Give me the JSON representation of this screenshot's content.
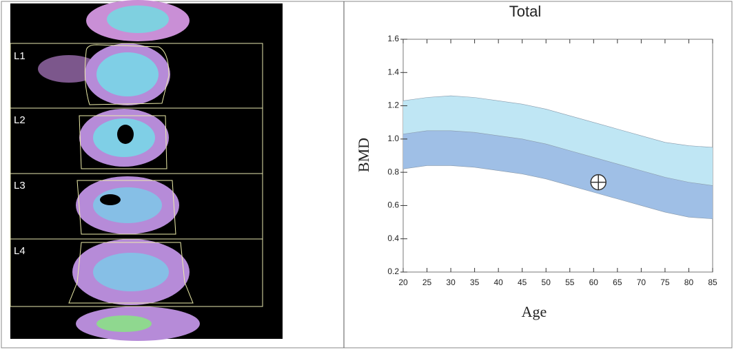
{
  "scan": {
    "labels": [
      "L1",
      "L2",
      "L3",
      "L4"
    ]
  },
  "chart_data": {
    "type": "band",
    "title": "Total",
    "xlabel": "Age",
    "ylabel": "BMD",
    "x": [
      20,
      25,
      30,
      35,
      40,
      45,
      50,
      55,
      60,
      65,
      70,
      75,
      80,
      85
    ],
    "series": [
      {
        "color": "#bfe6f4",
        "values": [
          1.23,
          1.25,
          1.26,
          1.25,
          1.23,
          1.21,
          1.18,
          1.14,
          1.1,
          1.06,
          1.02,
          0.98,
          0.96,
          0.95
        ]
      },
      {
        "color": "#9fbfe6",
        "values": [
          1.03,
          1.05,
          1.05,
          1.04,
          1.02,
          1.0,
          0.97,
          0.93,
          0.89,
          0.85,
          0.81,
          0.77,
          0.74,
          0.72
        ]
      },
      {
        "color": "#8899aa",
        "values": [
          0.82,
          0.84,
          0.84,
          0.83,
          0.81,
          0.79,
          0.76,
          0.72,
          0.68,
          0.64,
          0.6,
          0.56,
          0.53,
          0.52
        ]
      }
    ],
    "points": {
      "x": [
        61
      ],
      "y": [
        0.74
      ]
    },
    "xlim": [
      20,
      85
    ],
    "ylim": [
      0.2,
      1.6
    ],
    "xticks": [
      20,
      25,
      30,
      35,
      40,
      45,
      50,
      55,
      60,
      65,
      70,
      75,
      80,
      85
    ],
    "yticks": [
      0.2,
      0.4,
      0.6,
      0.8,
      {
        "value": 1,
        "label": "1.0"
      },
      1.2,
      1.4,
      1.6
    ]
  }
}
